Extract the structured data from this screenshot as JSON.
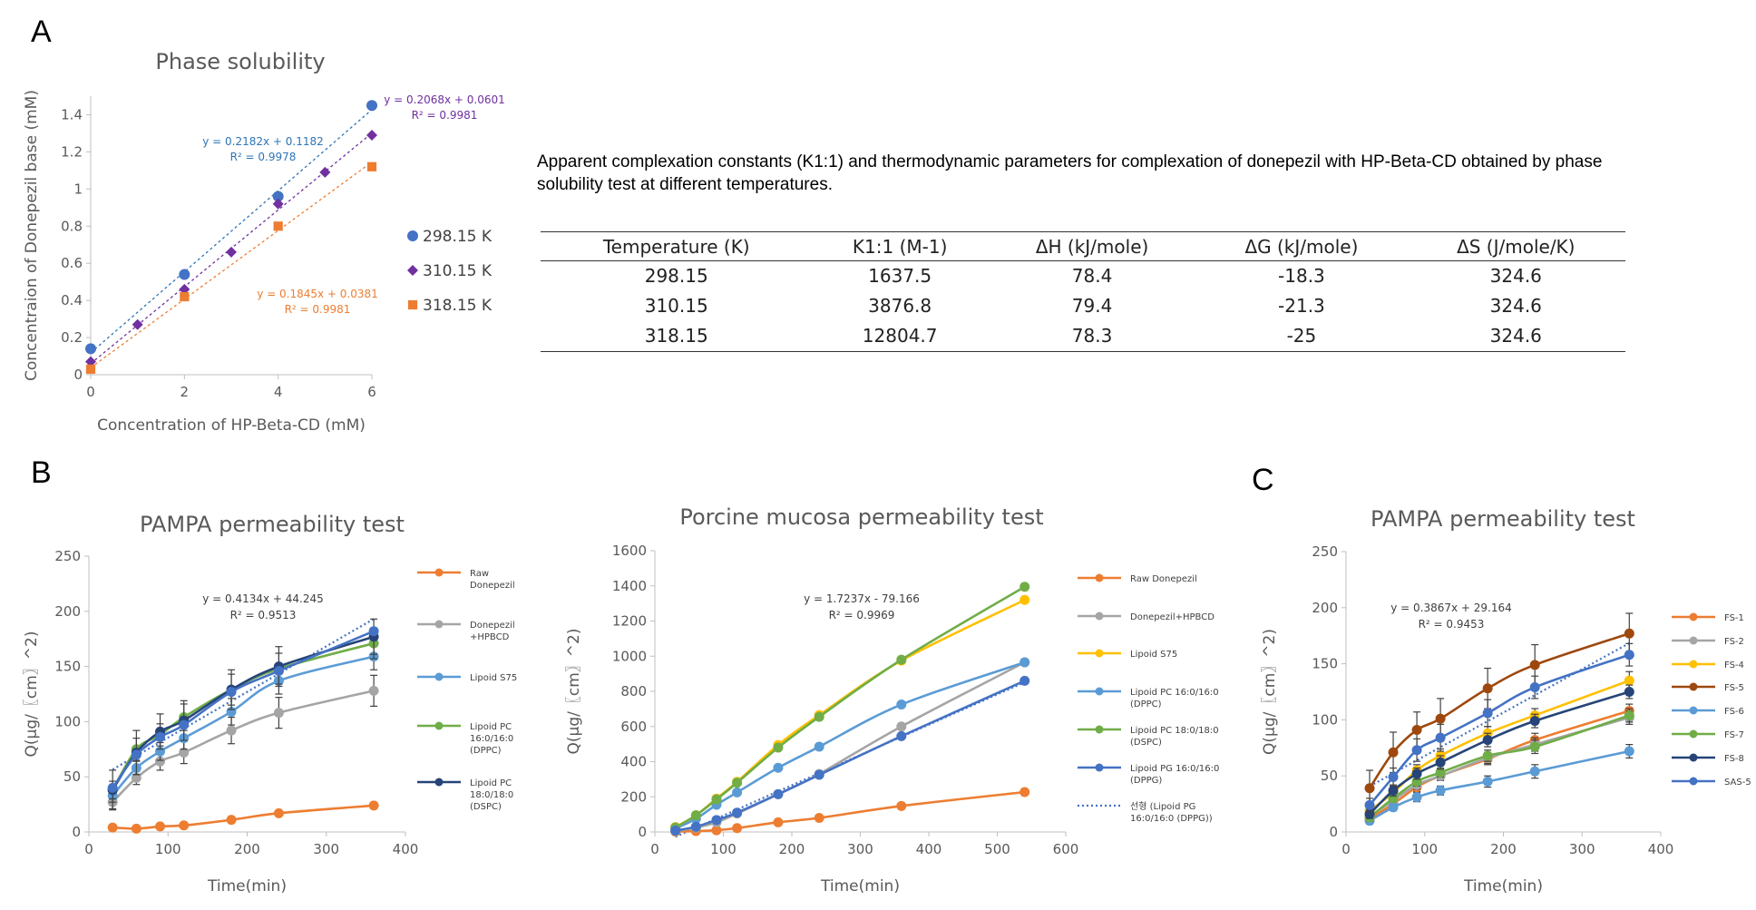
{
  "panel_labels": [
    "A",
    "B",
    "C"
  ],
  "caption": "Apparent complexation constants (K1:1) and thermodynamic parameters for complexation of donepezil with HP-Beta-CD obtained by phase solubility test at different temperatures.",
  "table": {
    "headers": [
      "Temperature (K)",
      "K1:1 (M-1)",
      "ΔH (kJ/mole)",
      "ΔG (kJ/mole)",
      "ΔS (J/mole/K)"
    ],
    "rows": [
      [
        "298.15",
        "1637.5",
        "78.4",
        "-18.3",
        "324.6"
      ],
      [
        "310.15",
        "3876.8",
        "79.4",
        "-21.3",
        "324.6"
      ],
      [
        "318.15",
        "12804.7",
        "78.3",
        "-25",
        "324.6"
      ]
    ]
  },
  "chart_data": [
    {
      "id": "A",
      "type": "scatter",
      "title": "Phase solubility",
      "xlabel": "Concentration of HP-Beta-CD (mM)",
      "ylabel": "Concentraion of Donepezil base (mM)",
      "xlim": [
        0,
        6
      ],
      "ylim": [
        0,
        1.5
      ],
      "xticks": [
        0,
        2,
        4,
        6
      ],
      "yticks": [
        0,
        0.2,
        0.4,
        0.6,
        0.8,
        1,
        1.2,
        1.4
      ],
      "grid": false,
      "legend": "right",
      "series": [
        {
          "name": "298.15 K",
          "color": "#4472C4",
          "marker": "circle",
          "x": [
            0,
            2,
            4,
            6
          ],
          "y": [
            0.14,
            0.54,
            0.96,
            1.45
          ],
          "trend": {
            "slope": 0.2182,
            "intercept": 0.1182,
            "equation": "y = 0.2182x + 0.1182",
            "r2": "R² = 0.9978",
            "color": "#2E75B6"
          }
        },
        {
          "name": "310.15 K",
          "color": "#7030A0",
          "marker": "diamond",
          "x": [
            0,
            1,
            2,
            3,
            4,
            5,
            6
          ],
          "y": [
            0.07,
            0.27,
            0.46,
            0.66,
            0.92,
            1.09,
            1.29
          ],
          "trend": {
            "slope": 0.2068,
            "intercept": 0.0601,
            "equation": "y = 0.2068x + 0.0601",
            "r2": "R² = 0.9981",
            "color": "#7030A0"
          }
        },
        {
          "name": "318.15 K",
          "color": "#ED7D31",
          "marker": "square",
          "x": [
            0,
            2,
            4,
            6
          ],
          "y": [
            0.03,
            0.42,
            0.8,
            1.12
          ],
          "trend": {
            "slope": 0.1845,
            "intercept": 0.0381,
            "equation": "y = 0.1845x + 0.0381",
            "r2": "R² = 0.9981",
            "color": "#ED7D31"
          }
        }
      ]
    },
    {
      "id": "B1",
      "type": "line",
      "title": "PAMPA permeability test",
      "xlabel": "Time(min)",
      "ylabel": "Q(μg/〖cm〗^2)",
      "xlim": [
        0,
        400
      ],
      "ylim": [
        0,
        250
      ],
      "xticks": [
        0,
        100,
        200,
        300,
        400
      ],
      "yticks": [
        0,
        50,
        100,
        150,
        200,
        250
      ],
      "grid": false,
      "legend": "right",
      "x": [
        30,
        60,
        90,
        120,
        180,
        240,
        360
      ],
      "series": [
        {
          "name": "Raw Donepezil",
          "color": "#ED7D31",
          "values": [
            4,
            3,
            5,
            6,
            11,
            17,
            24
          ],
          "err": [
            2,
            2,
            2,
            2,
            2,
            2,
            2
          ]
        },
        {
          "name": "Donepezil +HPBCD",
          "color": "#A5A5A5",
          "values": [
            27,
            49,
            64,
            72,
            92,
            108,
            128
          ],
          "err": [
            6,
            6,
            8,
            10,
            12,
            14,
            14
          ]
        },
        {
          "name": "Lipoid S75",
          "color": "#5B9BD5",
          "values": [
            33,
            58,
            73,
            85,
            109,
            137,
            159
          ],
          "err": [
            6,
            6,
            8,
            10,
            12,
            12,
            12
          ]
        },
        {
          "name": "Lipoid PC 16:0/16:0 (DPPC)",
          "color": "#70AD47",
          "values": [
            38,
            75,
            88,
            104,
            129,
            148,
            171
          ],
          "err": [
            8,
            10,
            10,
            12,
            14,
            14,
            14
          ]
        },
        {
          "name": "Lipoid PC 18:0/18:0 (DSPC)",
          "color": "#264478",
          "values": [
            38,
            72,
            91,
            101,
            129,
            150,
            177
          ],
          "err": [
            18,
            20,
            16,
            18,
            18,
            18,
            16
          ]
        },
        {
          "name": "",
          "color": "#4472C4",
          "values": [
            40,
            70,
            86,
            97,
            127,
            146,
            182
          ],
          "err": [
            0,
            0,
            0,
            0,
            0,
            0,
            0
          ]
        }
      ],
      "trend": {
        "slope": 0.4134,
        "intercept": 44.245,
        "equation": "y = 0.4134x + 44.245",
        "r2": "R² = 0.9513",
        "color": "#4472C4"
      }
    },
    {
      "id": "B2",
      "type": "line",
      "title": "Porcine mucosa permeability test",
      "xlabel": "Time(min)",
      "ylabel": "Q(μg/〖cm〗^2)",
      "xlim": [
        0,
        600
      ],
      "ylim": [
        0,
        1600
      ],
      "xticks": [
        0,
        100,
        200,
        300,
        400,
        500,
        600
      ],
      "yticks": [
        0,
        200,
        400,
        600,
        800,
        1000,
        1200,
        1400,
        1600
      ],
      "grid": false,
      "legend": "right",
      "x": [
        30,
        60,
        90,
        120,
        180,
        240,
        360,
        540
      ],
      "series": [
        {
          "name": "Raw Donepezil",
          "color": "#ED7D31",
          "values": [
            2,
            5,
            10,
            22,
            55,
            80,
            148,
            227
          ]
        },
        {
          "name": "Donepezil+HPBCD",
          "color": "#A5A5A5",
          "values": [
            5,
            25,
            55,
            105,
            215,
            330,
            600,
            965
          ]
        },
        {
          "name": "Lipoid S75",
          "color": "#FFC000",
          "values": [
            28,
            95,
            190,
            285,
            495,
            665,
            975,
            1320
          ]
        },
        {
          "name": "Lipoid PC 16:0/16:0 (DPPC)",
          "color": "#5B9BD5",
          "values": [
            20,
            75,
            155,
            225,
            365,
            485,
            725,
            965
          ]
        },
        {
          "name": "Lipoid PC 18:0/18:0 (DSPC)",
          "color": "#70AD47",
          "values": [
            25,
            95,
            185,
            280,
            480,
            655,
            980,
            1395
          ]
        },
        {
          "name": "Lipoid PG 16:0/16:0 (DPPG)",
          "color": "#4472C4",
          "values": [
            8,
            30,
            68,
            110,
            215,
            325,
            545,
            860
          ]
        }
      ],
      "trend": {
        "slope": 1.7237,
        "intercept": -79.166,
        "equation": "y = 1.7237x - 79.166",
        "r2": "R² = 0.9969",
        "color": "#4472C4",
        "name": "선형 (Lipoid PG 16:0/16:0 (DPPG))"
      }
    },
    {
      "id": "C",
      "type": "line",
      "title": "PAMPA permeability test",
      "xlabel": "Time(min)",
      "ylabel": "Q(μg/〖cm〗^2)",
      "xlim": [
        0,
        400
      ],
      "ylim": [
        0,
        250
      ],
      "xticks": [
        0,
        100,
        200,
        300,
        400
      ],
      "yticks": [
        0,
        50,
        100,
        150,
        200,
        250
      ],
      "grid": false,
      "legend": "right",
      "x": [
        30,
        60,
        90,
        120,
        180,
        240,
        360
      ],
      "series": [
        {
          "name": "FS-1",
          "color": "#ED7D31",
          "values": [
            12,
            25,
            40,
            50,
            65,
            82,
            108
          ],
          "err": [
            3,
            3,
            4,
            4,
            5,
            6,
            6
          ]
        },
        {
          "name": "FS-2",
          "color": "#A5A5A5",
          "values": [
            14,
            28,
            42,
            50,
            66,
            78,
            102
          ],
          "err": [
            3,
            3,
            4,
            4,
            5,
            6,
            6
          ]
        },
        {
          "name": "FS-4",
          "color": "#FFC000",
          "values": [
            19,
            35,
            55,
            68,
            88,
            104,
            135
          ],
          "err": [
            4,
            4,
            5,
            6,
            6,
            6,
            8
          ]
        },
        {
          "name": "FS-5",
          "color": "#9E480E",
          "values": [
            39,
            71,
            91,
            101,
            128,
            149,
            177
          ],
          "err": [
            16,
            18,
            16,
            18,
            18,
            18,
            18
          ]
        },
        {
          "name": "FS-6",
          "color": "#5B9BD5",
          "values": [
            10,
            22,
            31,
            37,
            45,
            54,
            72
          ],
          "err": [
            3,
            3,
            4,
            4,
            5,
            6,
            6
          ]
        },
        {
          "name": "FS-7",
          "color": "#70AD47",
          "values": [
            13,
            30,
            45,
            53,
            68,
            76,
            104
          ],
          "err": [
            3,
            3,
            4,
            4,
            5,
            6,
            6
          ]
        },
        {
          "name": "FS-8",
          "color": "#264478",
          "values": [
            16,
            37,
            52,
            62,
            82,
            99,
            125
          ],
          "err": [
            4,
            5,
            5,
            6,
            6,
            6,
            6
          ]
        },
        {
          "name": "SAS-5",
          "color": "#4472C4",
          "values": [
            24,
            49,
            73,
            84,
            106,
            129,
            158
          ],
          "err": [
            6,
            8,
            10,
            12,
            12,
            10,
            10
          ]
        }
      ],
      "trend": {
        "slope": 0.3867,
        "intercept": 29.164,
        "equation": "y = 0.3867x + 29.164",
        "r2": "R² = 0.9453",
        "color": "#4472C4"
      }
    }
  ]
}
